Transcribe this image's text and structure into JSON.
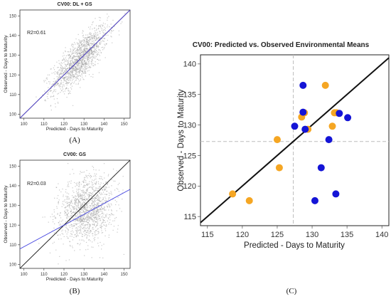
{
  "chart_data": [
    {
      "panel": "(A)",
      "type": "scatter",
      "title": "CV00: DL + GS",
      "xlabel": "Predicted - Days to Maturity",
      "ylabel": "Observed - Days to Maturity",
      "xlim": [
        98,
        153
      ],
      "ylim": [
        98,
        153
      ],
      "xticks": [
        100,
        110,
        120,
        130,
        140,
        150
      ],
      "yticks": [
        100,
        110,
        120,
        130,
        140,
        150
      ],
      "annotation": "R2=0.61",
      "grid": false,
      "cloud": {
        "color": "#9a9a9a",
        "center_x": 128,
        "center_y": 128,
        "corr": 0.78
      },
      "lines": [
        {
          "kind": "identity",
          "color": "#222222",
          "slope": 1,
          "intercept": 0
        },
        {
          "kind": "fit",
          "color": "#5a4bd6",
          "slope": 1.0,
          "intercept": 0
        }
      ]
    },
    {
      "panel": "(B)",
      "type": "scatter",
      "title": "CV00: GS",
      "xlabel": "Predicted - Days to Maturity",
      "ylabel": "Observed - Days to Maturity",
      "xlim": [
        98,
        153
      ],
      "ylim": [
        98,
        153
      ],
      "xticks": [
        100,
        110,
        120,
        130,
        140,
        150
      ],
      "yticks": [
        100,
        110,
        120,
        130,
        140,
        150
      ],
      "annotation": "R2=0.03",
      "grid": false,
      "cloud": {
        "color": "#9a9a9a",
        "center_x": 131,
        "center_y": 128,
        "corr": 0.2
      },
      "lines": [
        {
          "kind": "identity",
          "color": "#222222",
          "slope": 1,
          "intercept": 0
        },
        {
          "kind": "fit",
          "color": "#3f3fe0",
          "slope": 0.55,
          "intercept": 54
        }
      ]
    },
    {
      "panel": "(C)",
      "type": "scatter",
      "title": "CV00: Predicted vs. Observed Environmental Means",
      "xlabel": "Predicted - Days to Maturity",
      "ylabel": "Observed - Days to Maturity",
      "xlim": [
        114,
        141
      ],
      "ylim": [
        113.5,
        141.5
      ],
      "xticks": [
        115,
        120,
        125,
        130,
        135,
        140
      ],
      "yticks": [
        115,
        120,
        125,
        130,
        135,
        140
      ],
      "grid": false,
      "mean_x": 127.3,
      "mean_y": 127.3,
      "lines": [
        {
          "kind": "identity",
          "color": "#111111",
          "slope": 1,
          "intercept": 0
        }
      ],
      "series": [
        {
          "color": "#f5a623",
          "points": [
            [
              118.6,
              118.7
            ],
            [
              121.0,
              117.6
            ],
            [
              125.0,
              127.6
            ],
            [
              125.3,
              123.0
            ],
            [
              128.5,
              131.3
            ],
            [
              128.9,
              132.0
            ],
            [
              129.4,
              129.3
            ],
            [
              131.9,
              136.5
            ],
            [
              132.9,
              129.8
            ],
            [
              133.2,
              132.0
            ],
            [
              133.5,
              132.0
            ]
          ]
        },
        {
          "color": "#1414d6",
          "points": [
            [
              127.5,
              129.8
            ],
            [
              128.7,
              136.5
            ],
            [
              128.7,
              132.1
            ],
            [
              129.0,
              129.3
            ],
            [
              130.4,
              117.6
            ],
            [
              131.3,
              123.0
            ],
            [
              132.4,
              127.6
            ],
            [
              133.4,
              118.7
            ],
            [
              133.9,
              131.9
            ],
            [
              135.1,
              131.2
            ]
          ]
        }
      ]
    }
  ]
}
